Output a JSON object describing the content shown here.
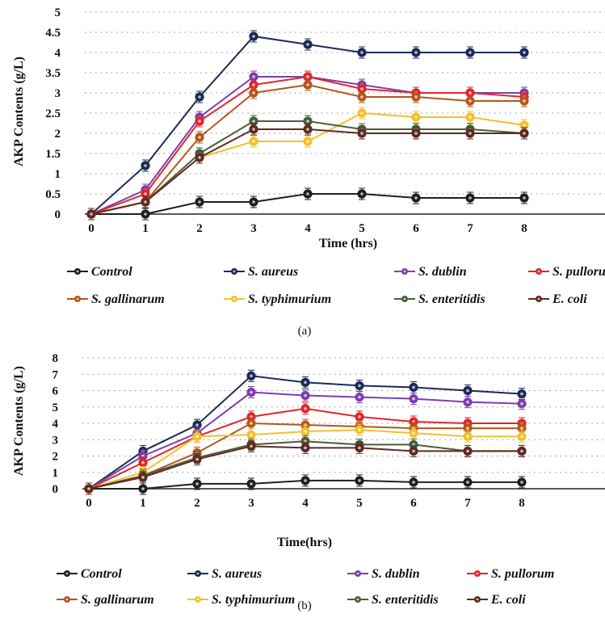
{
  "chart_data": [
    {
      "type": "line",
      "panel_label": "(a)",
      "xlabel": "Time (hrs)",
      "ylabel": "AKP Contents (g/L)",
      "x": [
        0,
        1,
        2,
        3,
        4,
        5,
        6,
        7,
        8
      ],
      "xlim": [
        0,
        10
      ],
      "ylim": [
        0,
        5
      ],
      "yticks": [
        0,
        0.5,
        1,
        1.5,
        2,
        2.5,
        3,
        3.5,
        4,
        4.5,
        5
      ],
      "grid": true,
      "legend_position": "bottom",
      "series": [
        {
          "name": "Control",
          "color": "#1f1f1f",
          "values": [
            0,
            0,
            0.3,
            0.3,
            0.5,
            0.5,
            0.4,
            0.4,
            0.4
          ]
        },
        {
          "name": "S. aureus",
          "color": "#1b2a57",
          "values": [
            0,
            1.2,
            2.9,
            4.4,
            4.2,
            4.0,
            4.0,
            4.0,
            4.0
          ]
        },
        {
          "name": "S. dublin",
          "color": "#7a3fb0",
          "values": [
            0,
            0.6,
            2.4,
            3.4,
            3.4,
            3.2,
            3.0,
            3.0,
            3.0
          ]
        },
        {
          "name": "S. pullorum",
          "color": "#e0262b",
          "values": [
            0,
            0.5,
            2.3,
            3.2,
            3.4,
            3.1,
            3.0,
            3.0,
            2.9
          ]
        },
        {
          "name": "S. gallinarum",
          "color": "#b5561b",
          "values": [
            0,
            0.3,
            1.9,
            3.0,
            3.2,
            2.9,
            2.9,
            2.8,
            2.8
          ]
        },
        {
          "name": "S. typhimurium",
          "color": "#f2c12e",
          "values": [
            0,
            0.3,
            1.4,
            1.8,
            1.8,
            2.5,
            2.4,
            2.4,
            2.2
          ]
        },
        {
          "name": "S. enteritidis",
          "color": "#4a5e3a",
          "values": [
            0,
            0.3,
            1.5,
            2.3,
            2.3,
            2.1,
            2.1,
            2.1,
            2.0
          ]
        },
        {
          "name": "E. coli",
          "color": "#5e2a22",
          "values": [
            0,
            0.3,
            1.4,
            2.1,
            2.1,
            2.0,
            2.0,
            2.0,
            2.0
          ]
        }
      ]
    },
    {
      "type": "line",
      "panel_label": "(b)",
      "xlabel": "Time(hrs)",
      "ylabel": "AKP Contents (g/L)",
      "x": [
        0,
        1,
        2,
        3,
        4,
        5,
        6,
        7,
        8
      ],
      "xlim": [
        0,
        10
      ],
      "ylim": [
        0,
        8
      ],
      "yticks": [
        0,
        1,
        2,
        3,
        4,
        5,
        6,
        7,
        8
      ],
      "grid": true,
      "legend_position": "bottom",
      "series": [
        {
          "name": "Control",
          "color": "#1f1f1f",
          "values": [
            0,
            0,
            0.3,
            0.3,
            0.5,
            0.5,
            0.4,
            0.4,
            0.4
          ]
        },
        {
          "name": "S. aureus",
          "color": "#1b2a57",
          "values": [
            0,
            2.3,
            3.9,
            6.9,
            6.5,
            6.3,
            6.2,
            6.0,
            5.8
          ]
        },
        {
          "name": "S. dublin",
          "color": "#7a3fb0",
          "values": [
            0,
            2.0,
            3.4,
            5.9,
            5.7,
            5.6,
            5.5,
            5.3,
            5.2
          ]
        },
        {
          "name": "S. pullorum",
          "color": "#e0262b",
          "values": [
            0,
            1.6,
            3.2,
            4.4,
            4.9,
            4.4,
            4.1,
            4.0,
            4.0
          ]
        },
        {
          "name": "S. gallinarum",
          "color": "#b5561b",
          "values": [
            0,
            0.8,
            2.2,
            4.0,
            3.9,
            3.8,
            3.7,
            3.7,
            3.7
          ]
        },
        {
          "name": "S. typhimurium",
          "color": "#f2c12e",
          "values": [
            0,
            1.0,
            3.2,
            3.3,
            3.5,
            3.6,
            3.4,
            3.2,
            3.2
          ]
        },
        {
          "name": "S. enteritidis",
          "color": "#4a5e3a",
          "values": [
            0,
            0.8,
            1.9,
            2.7,
            2.9,
            2.7,
            2.7,
            2.3,
            2.3
          ]
        },
        {
          "name": "E. coli",
          "color": "#5e2a22",
          "values": [
            0,
            0.7,
            1.8,
            2.6,
            2.5,
            2.5,
            2.3,
            2.3,
            2.3
          ]
        }
      ]
    }
  ]
}
